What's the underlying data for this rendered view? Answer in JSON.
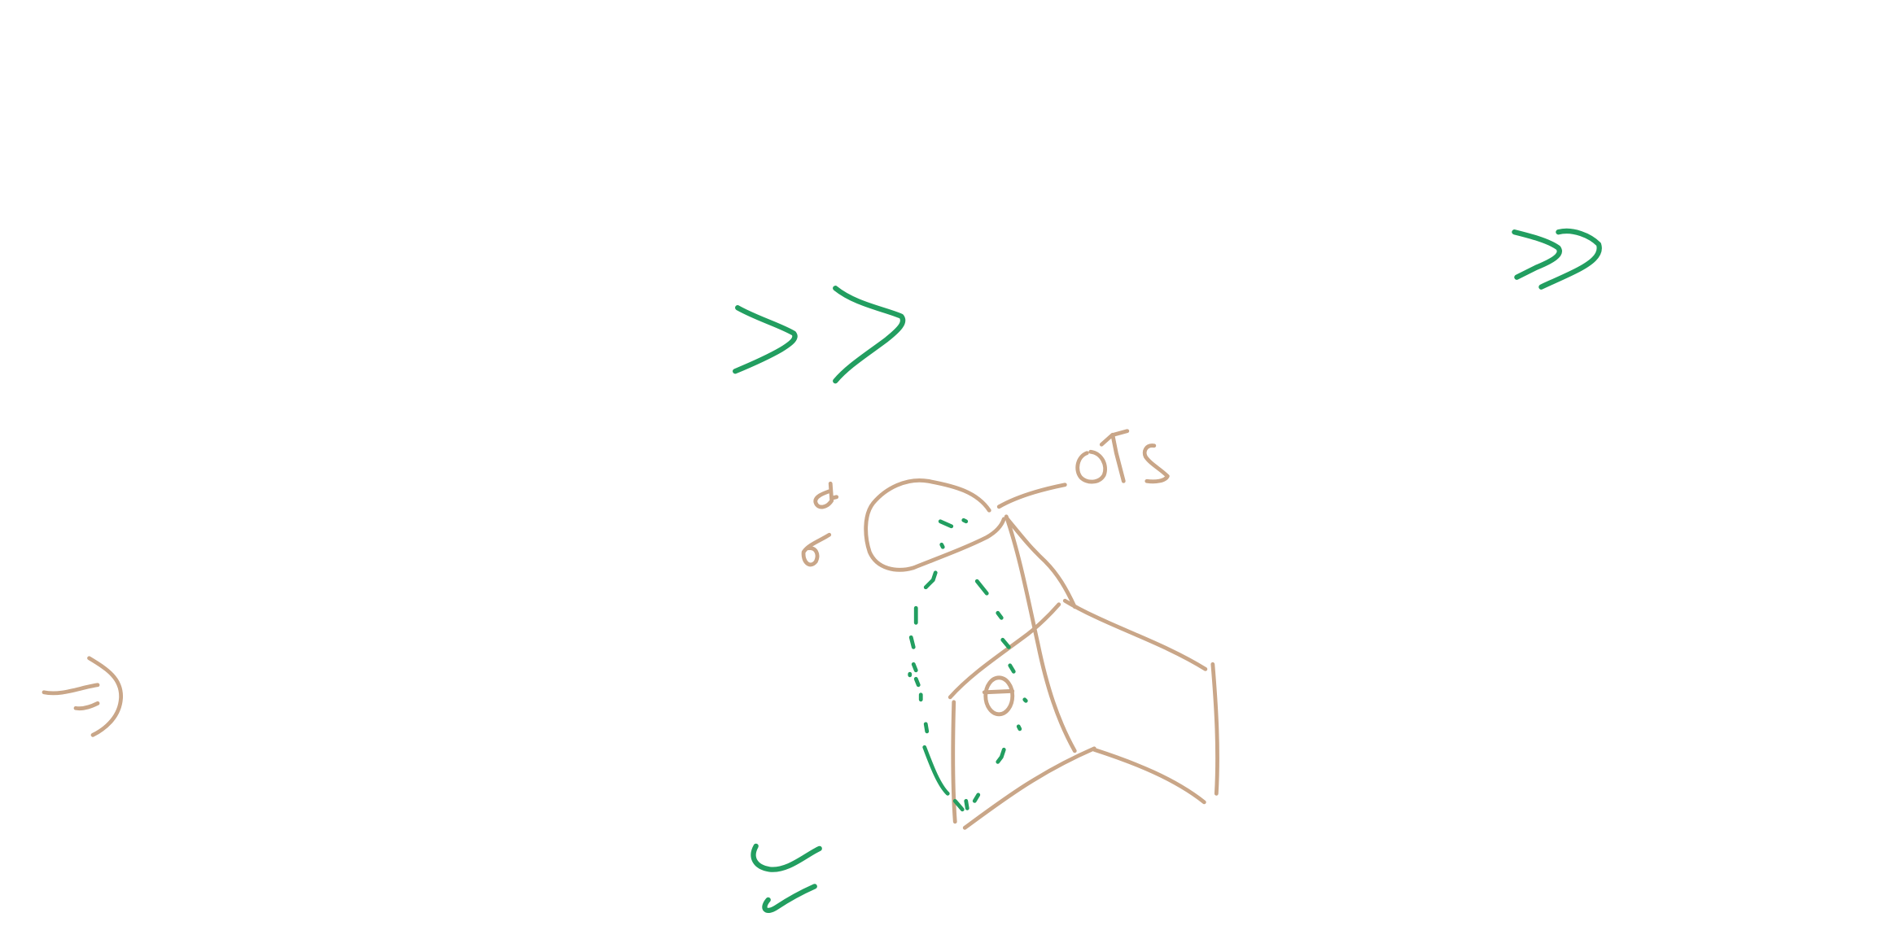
{
  "colors": {
    "background": "#ffffff",
    "sketch_stroke": "#c9a688",
    "accent_stroke": "#229e60"
  },
  "diagram": {
    "kind": "hand-drawn sketch",
    "label_015": "015",
    "label_theta": "θ"
  }
}
